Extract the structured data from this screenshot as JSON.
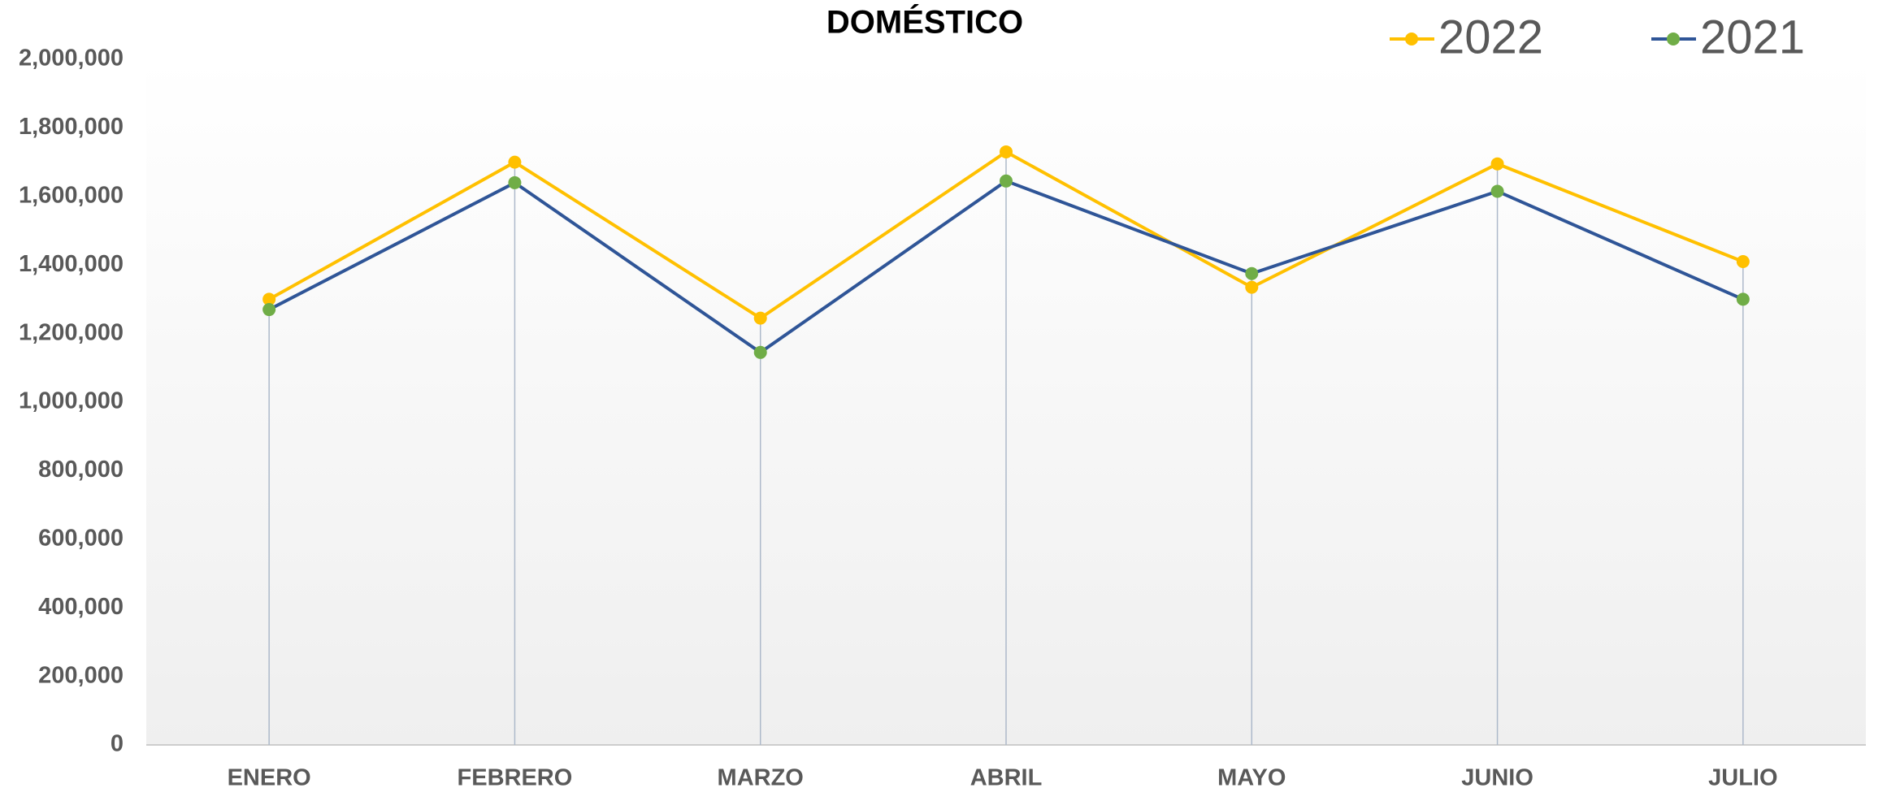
{
  "chart_data": {
    "type": "line",
    "title": "DOMÉSTICO",
    "categories": [
      "ENERO",
      "FEBRERO",
      "MARZO",
      "ABRIL",
      "MAYO",
      "JUNIO",
      "JULIO"
    ],
    "series": [
      {
        "name": "2022",
        "color": "#ffc000",
        "marker_color": "#ffc000",
        "values": [
          1300000,
          1700000,
          1245000,
          1730000,
          1335000,
          1695000,
          1410000
        ]
      },
      {
        "name": "2021",
        "color": "#2f5597",
        "marker_color": "#70ad47",
        "values": [
          1270000,
          1640000,
          1145000,
          1645000,
          1375000,
          1615000,
          1300000
        ]
      }
    ],
    "ylim": [
      0,
      2000000
    ],
    "yticks": [
      0,
      {
        "value": 200000,
        "label": "200,000"
      },
      {
        "value": 400000,
        "label": "400,000"
      },
      {
        "value": 600000,
        "label": "600,000"
      },
      {
        "value": 800000,
        "label": "800,000"
      },
      {
        "value": 1000000,
        "label": "1,000,000"
      },
      {
        "value": 1200000,
        "label": "1,200,000"
      },
      {
        "value": 1400000,
        "label": "1,400,000"
      },
      {
        "value": 1600000,
        "label": "1,600,000"
      },
      {
        "value": 1800000,
        "label": "1,800,000"
      },
      {
        "value": 2000000,
        "label": "2,000,000"
      }
    ],
    "drop_lines": true,
    "legend": "top-right"
  }
}
